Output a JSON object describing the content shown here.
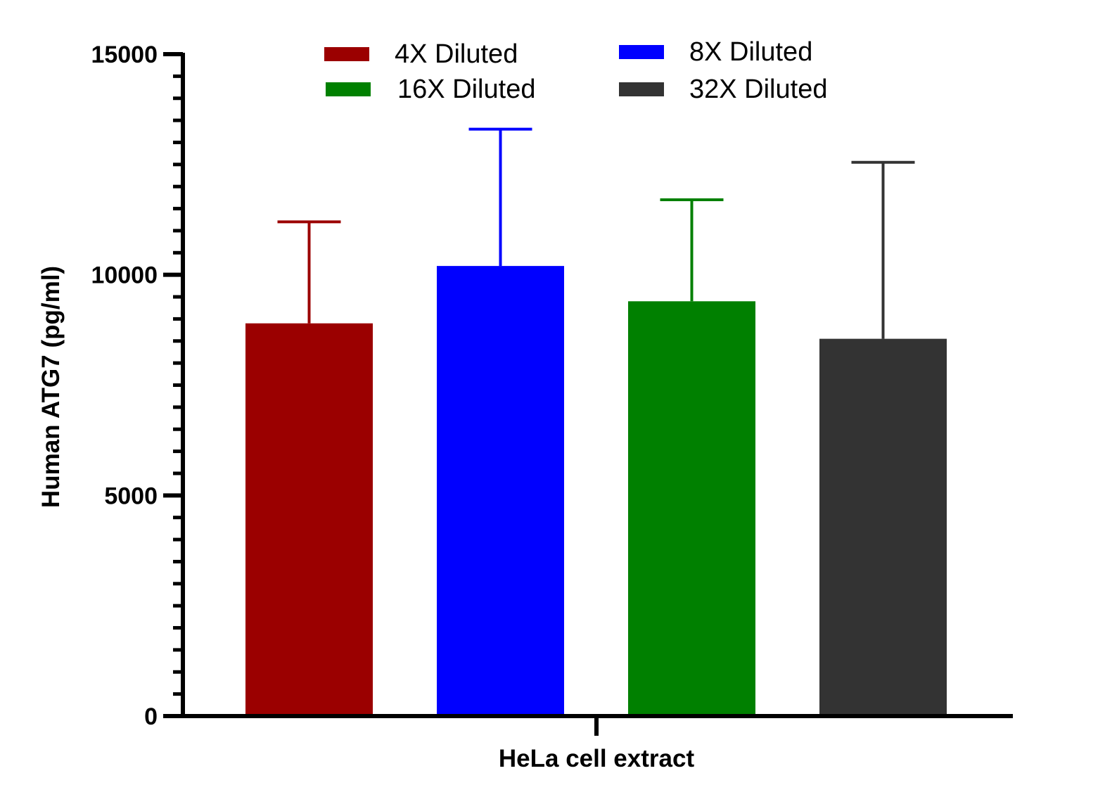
{
  "chart_data": {
    "type": "bar",
    "title": "",
    "xlabel": "HeLa cell extract",
    "ylabel": "Human ATG7 (pg/ml)",
    "ylim": [
      0,
      15000
    ],
    "yticks": [
      "0",
      "5000",
      "10000",
      "15000"
    ],
    "categories": [
      "HeLa cell extract"
    ],
    "grid": false,
    "legend_position": "top",
    "series": [
      {
        "name": "4X Diluted",
        "values": [
          8900
        ],
        "error": [
          2300
        ],
        "color": "#9b0000"
      },
      {
        "name": "8X Diluted",
        "values": [
          10200
        ],
        "error": [
          3100
        ],
        "color": "#0000ff"
      },
      {
        "name": "16X Diluted",
        "values": [
          9400
        ],
        "error": [
          2300
        ],
        "color": "#008000"
      },
      {
        "name": "32X Diluted",
        "values": [
          8550
        ],
        "error": [
          4000
        ],
        "color": "#333333"
      }
    ]
  }
}
